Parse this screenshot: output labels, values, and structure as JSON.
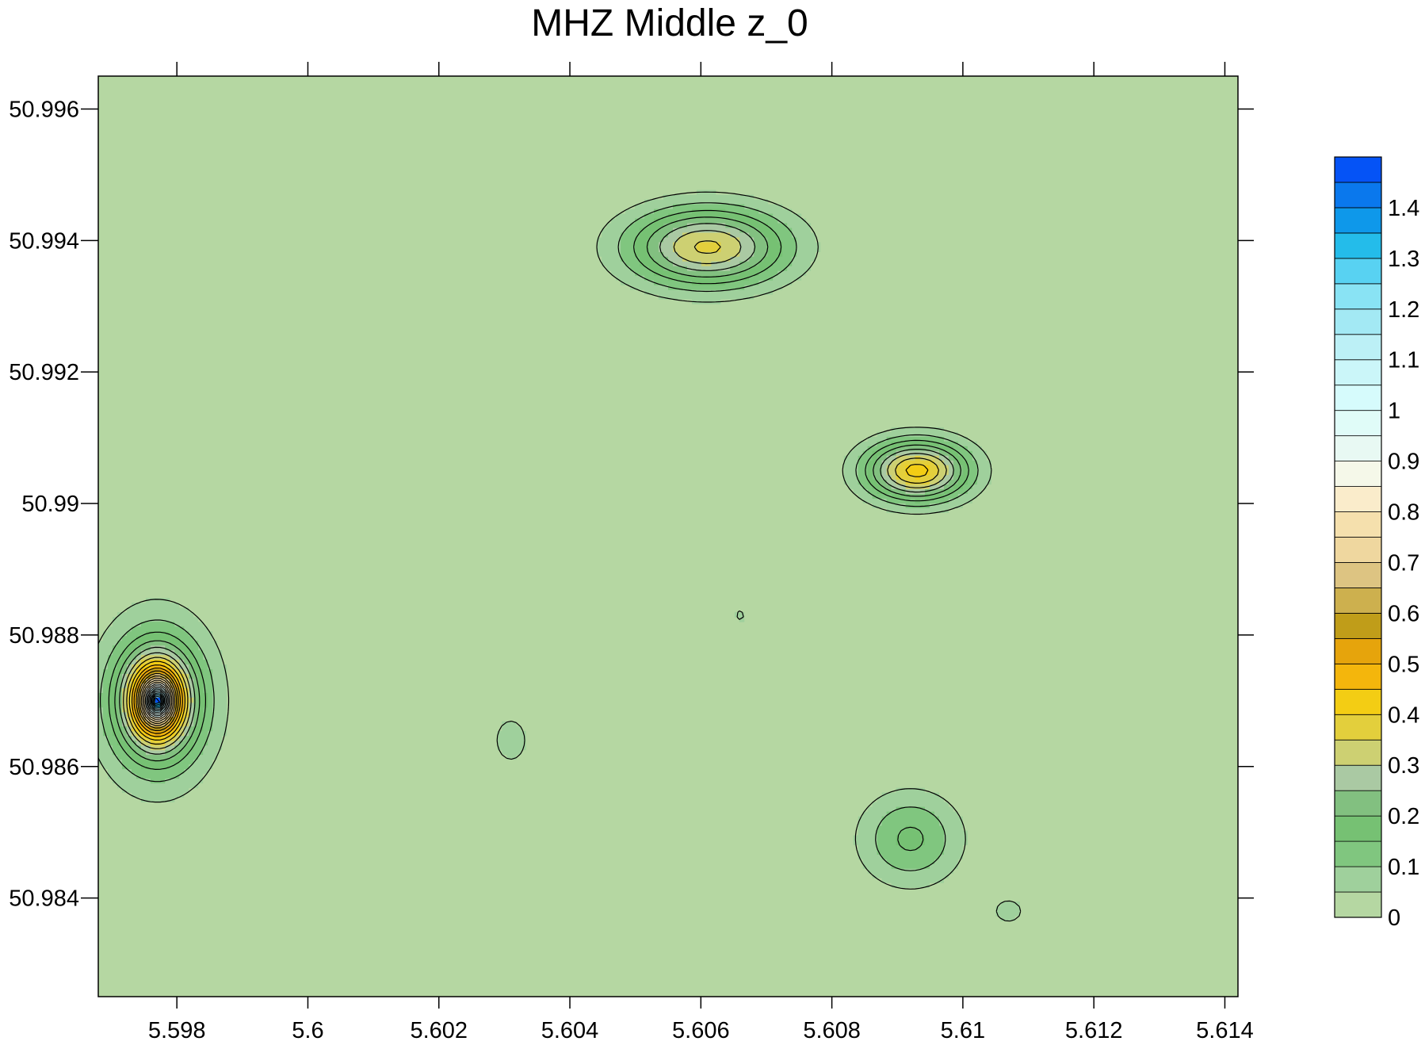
{
  "chart_data": {
    "type": "contour",
    "title": "MHZ Middle z_0",
    "xlabel": "",
    "ylabel": "",
    "xlim": [
      5.5968,
      5.6142
    ],
    "ylim": [
      50.9825,
      50.9965
    ],
    "x_ticks": [
      5.598,
      5.6,
      5.602,
      5.604,
      5.606,
      5.608,
      5.61,
      5.612,
      5.614
    ],
    "x_tick_labels": [
      "5.598",
      "5.6",
      "5.602",
      "5.604",
      "5.606",
      "5.608",
      "5.61",
      "5.612",
      "5.614"
    ],
    "y_ticks": [
      50.984,
      50.986,
      50.988,
      50.99,
      50.992,
      50.994,
      50.996
    ],
    "y_tick_labels": [
      "50.984",
      "50.986",
      "50.988",
      "50.99",
      "50.992",
      "50.994",
      "50.996"
    ],
    "colorbar": {
      "range": [
        0,
        1.5
      ],
      "levels": [
        0,
        0.05,
        0.1,
        0.15,
        0.2,
        0.25,
        0.3,
        0.35,
        0.4,
        0.45,
        0.5,
        0.55,
        0.6,
        0.65,
        0.7,
        0.75,
        0.8,
        0.85,
        0.9,
        0.95,
        1,
        1.05,
        1.1,
        1.15,
        1.2,
        1.25,
        1.3,
        1.35,
        1.4,
        1.45,
        1.5
      ],
      "colors": [
        "#b5d7a2",
        "#9fd09c",
        "#80c67f",
        "#76c173",
        "#82c080",
        "#aac9a3",
        "#cdd072",
        "#e3cf3c",
        "#f3cd14",
        "#f4b60c",
        "#e6a40c",
        "#c09d19",
        "#cdb04e",
        "#ddc482",
        "#efd79f",
        "#f5e0ad",
        "#faeccb",
        "#f5f8e9",
        "#e8f9f3",
        "#e0fcf8",
        "#d6fbfc",
        "#cbf6f9",
        "#bcf0f6",
        "#a3e9f4",
        "#89e3f4",
        "#58d2f2",
        "#24bcea",
        "#0e98ea",
        "#0a78ed",
        "#0553f6"
      ],
      "tick_values": [
        0,
        0.1,
        0.2,
        0.3,
        0.4,
        0.5,
        0.6,
        0.7,
        0.8,
        0.9,
        1,
        1.1,
        1.2,
        1.3,
        1.4
      ],
      "tick_labels": [
        "0",
        "0.1",
        "0.2",
        "0.3",
        "0.4",
        "0.5",
        "0.6",
        "0.7",
        "0.8",
        "0.9",
        "1",
        "1.1",
        "1.2",
        "1.3",
        "1.4"
      ]
    },
    "features": [
      {
        "x": 5.5977,
        "y": 50.987,
        "peak": 1.5,
        "sx": 0.00048,
        "sy": 0.00068,
        "decay": "sharp"
      },
      {
        "x": 5.6061,
        "y": 50.9939,
        "peak": 0.36,
        "sx": 0.00085,
        "sy": 0.00042
      },
      {
        "x": 5.6093,
        "y": 50.9905,
        "peak": 0.42,
        "sx": 0.00055,
        "sy": 0.00032
      },
      {
        "x": 5.6092,
        "y": 50.9849,
        "peak": 0.16,
        "sx": 0.00055,
        "sy": 0.0005
      },
      {
        "x": 5.6031,
        "y": 50.9864,
        "peak": 0.06,
        "sx": 0.00035,
        "sy": 0.00048
      },
      {
        "x": 5.6066,
        "y": 50.9883,
        "peak": 0.06,
        "sx": 0.0001,
        "sy": 0.00012
      },
      {
        "x": 5.6107,
        "y": 50.9838,
        "peak": 0.06,
        "sx": 0.0003,
        "sy": 0.00025
      }
    ]
  }
}
